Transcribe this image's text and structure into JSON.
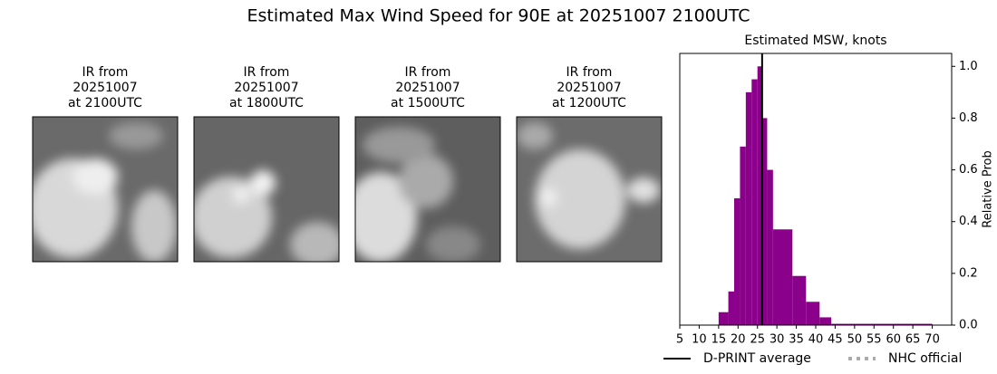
{
  "title": "Estimated Max Wind Speed for 90E at 20251007 2100UTC",
  "panels": [
    {
      "title": [
        "IR from",
        "20251007",
        "at 2100UTC"
      ]
    },
    {
      "title": [
        "IR from",
        "20251007",
        "at 1800UTC"
      ]
    },
    {
      "title": [
        "IR from",
        "20251007",
        "at 1500UTC"
      ]
    },
    {
      "title": [
        "IR from",
        "20251007",
        "at 1200UTC"
      ]
    }
  ],
  "chart_data": {
    "type": "histogram",
    "title": "Estimated MSW, knots",
    "y_label": "Relative Prob",
    "bins": [
      15,
      17.5,
      19,
      20.5,
      22,
      23.5,
      25,
      26,
      27.5,
      29,
      34,
      37.5,
      41,
      44,
      70
    ],
    "values": [
      0.05,
      0.13,
      0.49,
      0.69,
      0.9,
      0.95,
      1.0,
      0.8,
      0.6,
      0.37,
      0.19,
      0.09,
      0.03,
      0.005
    ],
    "color": "#8b008b",
    "xlim": [
      5,
      75
    ],
    "xticks": [
      5,
      10,
      15,
      20,
      25,
      30,
      35,
      40,
      45,
      50,
      55,
      60,
      65,
      70
    ],
    "ylim": [
      0,
      1.05
    ],
    "yticks": [
      {
        "value": 0,
        "label": "0.0"
      },
      0.2,
      0.4,
      0.6,
      0.8,
      {
        "value": 1,
        "label": "1.0"
      }
    ],
    "markers": [
      {
        "name": "D-PRINT average",
        "color": "#000000",
        "style": "solid",
        "x": 26.2
      },
      {
        "name": "NHC official",
        "color": "#aaaaaa",
        "style": "dotted"
      }
    ],
    "legend": "below"
  }
}
